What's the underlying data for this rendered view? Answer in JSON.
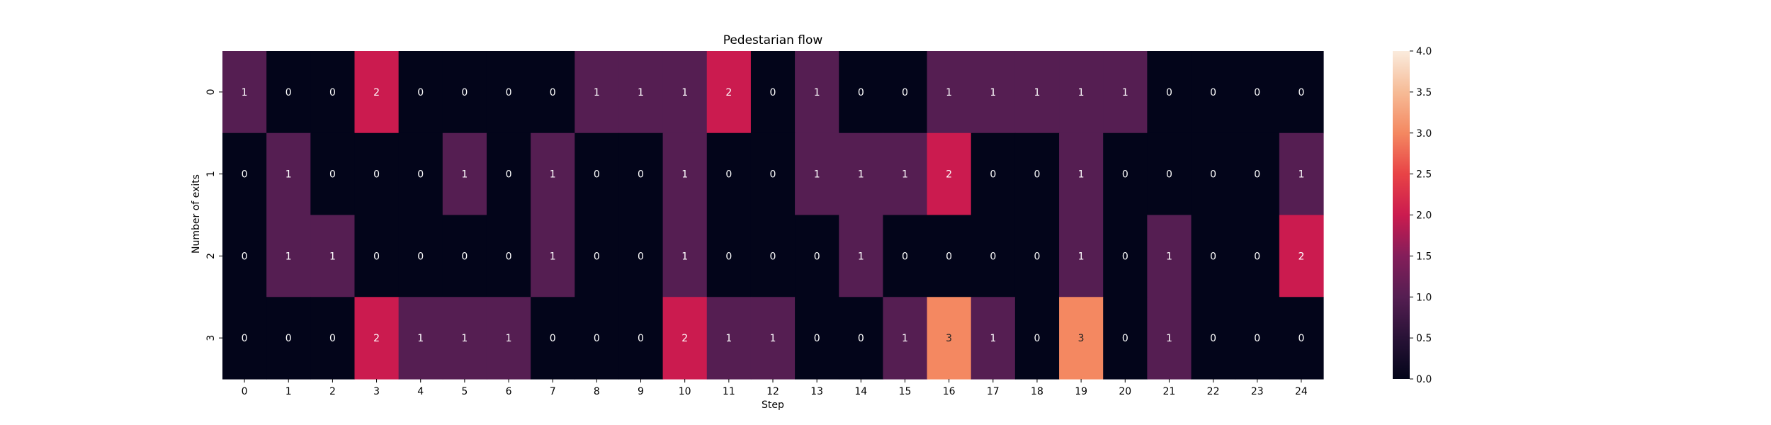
{
  "chart_data": {
    "type": "heatmap",
    "title": "Pedestarian flow",
    "xlabel": "Step",
    "ylabel": "Number of exits",
    "x_categories": [
      "0",
      "1",
      "2",
      "3",
      "4",
      "5",
      "6",
      "7",
      "8",
      "9",
      "10",
      "11",
      "12",
      "13",
      "14",
      "15",
      "16",
      "17",
      "18",
      "19",
      "20",
      "21",
      "22",
      "23",
      "24"
    ],
    "y_categories": [
      "0",
      "1",
      "2",
      "3"
    ],
    "values": [
      [
        1,
        0,
        0,
        2,
        0,
        0,
        0,
        0,
        1,
        1,
        1,
        2,
        0,
        1,
        0,
        0,
        1,
        1,
        1,
        1,
        1,
        0,
        0,
        0,
        0
      ],
      [
        0,
        1,
        0,
        0,
        0,
        1,
        0,
        1,
        0,
        0,
        1,
        0,
        0,
        1,
        1,
        1,
        2,
        0,
        0,
        1,
        0,
        0,
        0,
        0,
        1
      ],
      [
        0,
        1,
        1,
        0,
        0,
        0,
        0,
        1,
        0,
        0,
        1,
        0,
        0,
        0,
        1,
        0,
        0,
        0,
        0,
        1,
        0,
        1,
        0,
        0,
        2
      ],
      [
        0,
        0,
        0,
        2,
        1,
        1,
        1,
        0,
        0,
        0,
        2,
        1,
        1,
        0,
        0,
        1,
        3,
        1,
        0,
        3,
        0,
        1,
        0,
        0,
        0
      ]
    ],
    "colorbar": {
      "range": [
        0,
        4
      ],
      "ticks": [
        "0.0",
        "0.5",
        "1.0",
        "1.5",
        "2.0",
        "2.5",
        "3.0",
        "3.5",
        "4.0"
      ],
      "colormap": "rocket"
    },
    "annotations": true
  }
}
